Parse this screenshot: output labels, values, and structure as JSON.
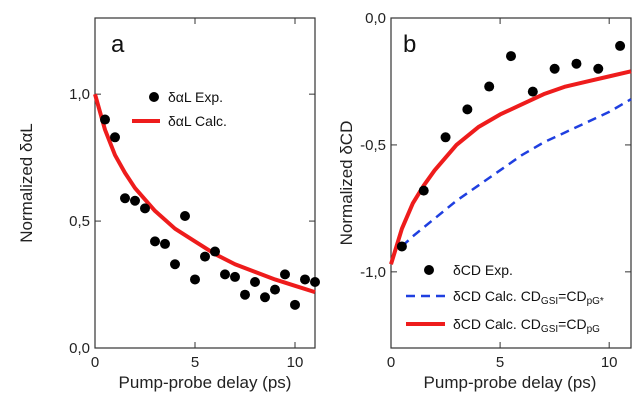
{
  "chart_data": [
    {
      "type": "scatter",
      "panel_label": "a",
      "xlabel": "Pump-probe delay (ps)",
      "ylabel": "Normalized δαL",
      "xlim": [
        0,
        11
      ],
      "ylim": [
        0,
        1.3
      ],
      "xticks": [
        0,
        5,
        10
      ],
      "yticks": [
        0,
        0.5,
        1.0
      ],
      "ytick_labels": [
        "0,0",
        "0,5",
        "1,0"
      ],
      "legend_position": "top-right",
      "series": [
        {
          "name": "δαL Exp.",
          "kind": "markers",
          "color": "#000000",
          "x": [
            0.5,
            1.0,
            1.5,
            2.0,
            2.5,
            3.0,
            3.5,
            4.0,
            4.5,
            5.0,
            5.5,
            6.0,
            6.5,
            7.0,
            7.5,
            8.0,
            8.5,
            9.0,
            9.5,
            10.0,
            10.5,
            11.0
          ],
          "y": [
            0.9,
            0.83,
            0.59,
            0.58,
            0.55,
            0.42,
            0.41,
            0.33,
            0.52,
            0.27,
            0.36,
            0.38,
            0.29,
            0.28,
            0.21,
            0.26,
            0.2,
            0.23,
            0.29,
            0.17,
            0.27,
            0.26
          ]
        },
        {
          "name": "δαL Calc.",
          "kind": "line",
          "color": "#ee1c1c",
          "x": [
            0,
            0.5,
            1,
            1.5,
            2,
            3,
            4,
            5,
            6,
            7,
            8,
            9,
            10,
            11
          ],
          "y": [
            1.0,
            0.86,
            0.76,
            0.69,
            0.63,
            0.54,
            0.47,
            0.42,
            0.37,
            0.33,
            0.3,
            0.27,
            0.245,
            0.22
          ]
        }
      ]
    },
    {
      "type": "scatter",
      "panel_label": "b",
      "xlabel": "Pump-probe delay (ps)",
      "ylabel": "Normalized δCD",
      "xlim": [
        0,
        11
      ],
      "ylim": [
        -1.3,
        0
      ],
      "xticks": [
        0,
        5,
        10
      ],
      "yticks": [
        -1.0,
        -0.5,
        0.0
      ],
      "ytick_labels": [
        "-1,0",
        "-0,5",
        "0,0"
      ],
      "legend_position": "bottom-right",
      "series": [
        {
          "name": "δCD Exp.",
          "kind": "markers",
          "color": "#000000",
          "x": [
            0.5,
            1.5,
            2.5,
            3.5,
            4.5,
            5.5,
            6.5,
            7.5,
            8.5,
            9.5,
            10.5
          ],
          "y": [
            -0.9,
            -0.68,
            -0.47,
            -0.36,
            -0.27,
            -0.15,
            -0.29,
            -0.2,
            -0.18,
            -0.2,
            -0.11
          ]
        },
        {
          "name": "δCD Calc. CDGSI=CDpG*",
          "kind": "dashed-line",
          "color": "#1f3fe0",
          "x": [
            0.5,
            1,
            2,
            3,
            4,
            5,
            6,
            7,
            8,
            9,
            10,
            11
          ],
          "y": [
            -0.9,
            -0.86,
            -0.79,
            -0.72,
            -0.66,
            -0.6,
            -0.54,
            -0.49,
            -0.45,
            -0.41,
            -0.37,
            -0.32
          ]
        },
        {
          "name": "δCD Calc. CDGSI=CDpG",
          "kind": "line",
          "color": "#ee1c1c",
          "x": [
            0,
            0.5,
            1,
            1.5,
            2,
            3,
            4,
            5,
            6,
            7,
            8,
            9,
            10,
            11
          ],
          "y": [
            -0.97,
            -0.83,
            -0.73,
            -0.66,
            -0.6,
            -0.5,
            -0.43,
            -0.38,
            -0.34,
            -0.3,
            -0.27,
            -0.25,
            -0.23,
            -0.21
          ]
        }
      ]
    }
  ],
  "legend_text": {
    "a": {
      "exp": "δαL Exp.",
      "calc": "δαL Calc."
    },
    "b": {
      "exp": "δCD Exp.",
      "calc1_main": "δCD Calc. CD",
      "calc1_sub1": "GSI",
      "calc1_mid": "=CD",
      "calc1_sub2": "pG*",
      "calc2_main": "δCD Calc. CD",
      "calc2_sub1": "GSI",
      "calc2_mid": "=CD",
      "calc2_sub2": "pG"
    }
  },
  "x_tick_labels": [
    "0",
    "5",
    "10"
  ]
}
